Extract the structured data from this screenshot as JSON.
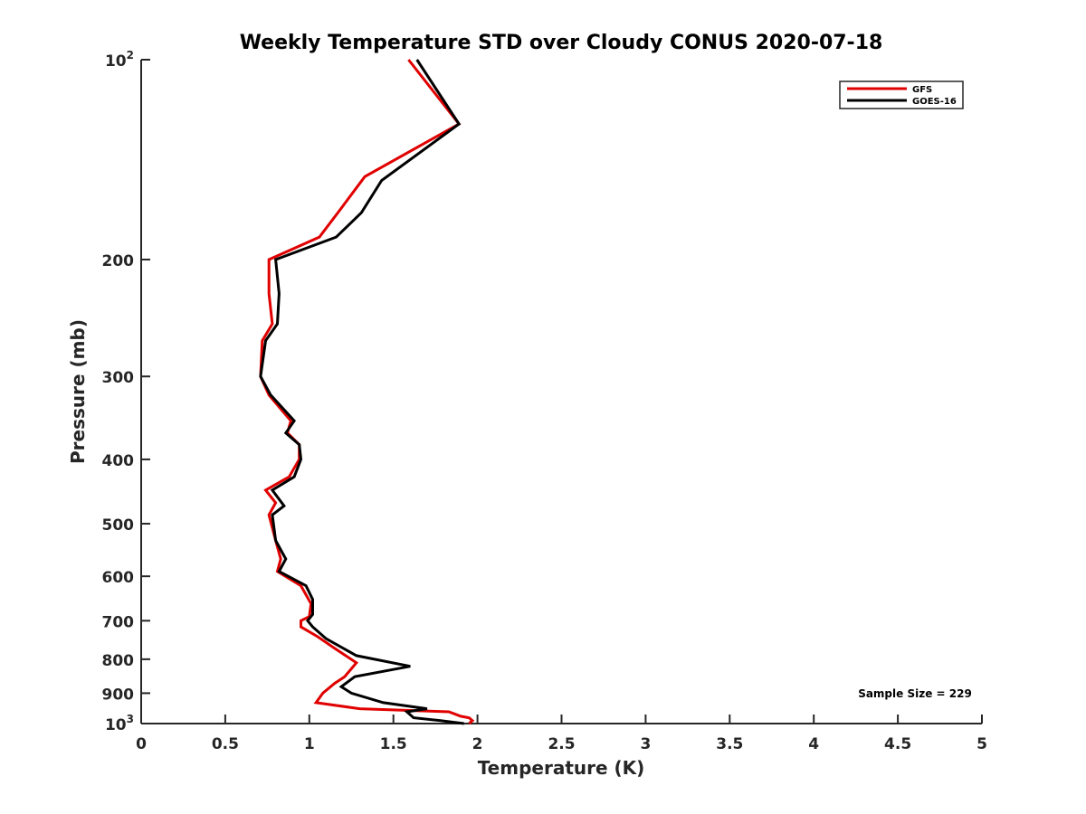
{
  "chart_data": {
    "type": "line",
    "title": "Weekly Temperature STD over Cloudy CONUS 2020-07-18",
    "xlabel": "Temperature (K)",
    "ylabel": "Pressure (mb)",
    "xlim": [
      0,
      5
    ],
    "ylim": [
      100,
      1000
    ],
    "y_scale": "log",
    "y_direction": "reversed",
    "grid": false,
    "legend_position": "top-right",
    "x_ticks": [
      "0",
      "0.5",
      "1",
      "1.5",
      "2",
      "2.5",
      "3",
      "3.5",
      "4",
      "4.5",
      "5"
    ],
    "x_tick_values": [
      0,
      0.5,
      1,
      1.5,
      2,
      2.5,
      3,
      3.5,
      4,
      4.5,
      5
    ],
    "y_ticks": [
      {
        "value": 100,
        "base": "10",
        "exp": "2"
      },
      {
        "value": 200,
        "label": "200"
      },
      {
        "value": 300,
        "label": "300"
      },
      {
        "value": 400,
        "label": "400"
      },
      {
        "value": 500,
        "label": "500"
      },
      {
        "value": 600,
        "label": "600"
      },
      {
        "value": 700,
        "label": "700"
      },
      {
        "value": 800,
        "label": "800"
      },
      {
        "value": 900,
        "label": "900"
      },
      {
        "value": 1000,
        "base": "10",
        "exp": "3"
      }
    ],
    "annotation": "Sample Size = 229",
    "series": [
      {
        "name": "GFS",
        "color": "#e00000",
        "points": [
          [
            1.59,
            100
          ],
          [
            1.89,
            125
          ],
          [
            1.33,
            150
          ],
          [
            1.17,
            170
          ],
          [
            1.06,
            185
          ],
          [
            0.76,
            200
          ],
          [
            0.76,
            225
          ],
          [
            0.78,
            250
          ],
          [
            0.72,
            265
          ],
          [
            0.71,
            300
          ],
          [
            0.76,
            320
          ],
          [
            0.89,
            350
          ],
          [
            0.87,
            365
          ],
          [
            0.94,
            380
          ],
          [
            0.94,
            400
          ],
          [
            0.88,
            425
          ],
          [
            0.74,
            445
          ],
          [
            0.8,
            465
          ],
          [
            0.76,
            485
          ],
          [
            0.8,
            530
          ],
          [
            0.83,
            565
          ],
          [
            0.81,
            590
          ],
          [
            0.95,
            620
          ],
          [
            1.01,
            660
          ],
          [
            1.0,
            690
          ],
          [
            0.95,
            700
          ],
          [
            0.95,
            715
          ],
          [
            1.05,
            740
          ],
          [
            1.15,
            770
          ],
          [
            1.28,
            810
          ],
          [
            1.21,
            850
          ],
          [
            1.15,
            870
          ],
          [
            1.08,
            900
          ],
          [
            1.04,
            930
          ],
          [
            1.3,
            950
          ],
          [
            1.83,
            960
          ],
          [
            1.9,
            975
          ],
          [
            1.95,
            980
          ],
          [
            1.97,
            990
          ],
          [
            1.95,
            1000
          ]
        ]
      },
      {
        "name": "GOES-16",
        "color": "#000000",
        "points": [
          [
            1.64,
            100
          ],
          [
            1.89,
            125
          ],
          [
            1.43,
            152
          ],
          [
            1.31,
            170
          ],
          [
            1.16,
            185
          ],
          [
            0.8,
            200
          ],
          [
            0.82,
            225
          ],
          [
            0.81,
            250
          ],
          [
            0.74,
            265
          ],
          [
            0.71,
            300
          ],
          [
            0.77,
            320
          ],
          [
            0.91,
            350
          ],
          [
            0.86,
            365
          ],
          [
            0.94,
            380
          ],
          [
            0.95,
            400
          ],
          [
            0.91,
            425
          ],
          [
            0.78,
            445
          ],
          [
            0.85,
            470
          ],
          [
            0.78,
            485
          ],
          [
            0.8,
            530
          ],
          [
            0.86,
            565
          ],
          [
            0.82,
            590
          ],
          [
            0.98,
            620
          ],
          [
            1.02,
            650
          ],
          [
            1.02,
            685
          ],
          [
            0.99,
            700
          ],
          [
            1.02,
            715
          ],
          [
            1.1,
            745
          ],
          [
            1.28,
            790
          ],
          [
            1.6,
            820
          ],
          [
            1.27,
            850
          ],
          [
            1.19,
            880
          ],
          [
            1.25,
            900
          ],
          [
            1.44,
            930
          ],
          [
            1.7,
            950
          ],
          [
            1.58,
            960
          ],
          [
            1.62,
            980
          ],
          [
            1.78,
            990
          ],
          [
            1.92,
            1000
          ]
        ]
      }
    ]
  }
}
